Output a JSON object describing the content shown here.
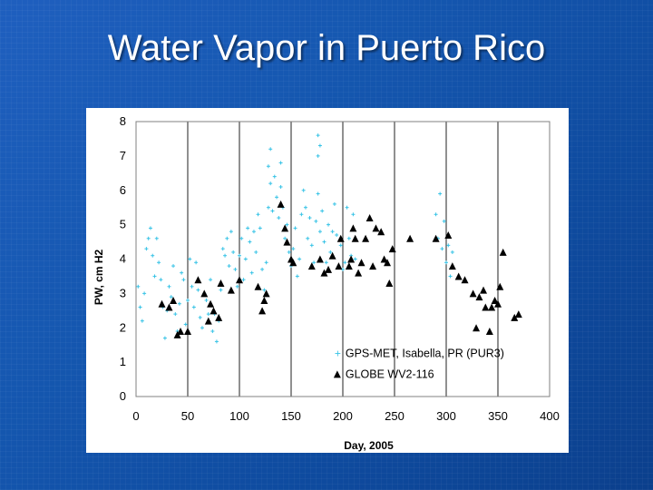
{
  "slide": {
    "title": "Water Vapor in Puerto Rico"
  },
  "colors": {
    "background": "#1557b0",
    "gps_series": "#37c3e6",
    "globe_series": "#000000"
  },
  "chart_data": {
    "type": "scatter",
    "title": "",
    "xlabel": "Day, 2005",
    "ylabel": "PW, cm H2",
    "xlim": [
      0,
      400
    ],
    "ylim": [
      0,
      8
    ],
    "xticks": [
      "0",
      "50",
      "100",
      "150",
      "200",
      "250",
      "300",
      "350",
      "400"
    ],
    "yticks": [
      "0",
      "1",
      "2",
      "3",
      "4",
      "5",
      "6",
      "7",
      "8"
    ],
    "grid": "vertical",
    "legend_position": "bottom-right",
    "series": [
      {
        "name": "GPS-MET, Isabella, PR (PUR3)",
        "marker": "plus",
        "points": [
          [
            2,
            3.2
          ],
          [
            4,
            2.6
          ],
          [
            6,
            2.2
          ],
          [
            8,
            3.0
          ],
          [
            10,
            4.3
          ],
          [
            12,
            4.6
          ],
          [
            14,
            4.9
          ],
          [
            16,
            4.1
          ],
          [
            18,
            3.5
          ],
          [
            20,
            4.6
          ],
          [
            22,
            3.9
          ],
          [
            24,
            3.4
          ],
          [
            26,
            2.6
          ],
          [
            28,
            1.7
          ],
          [
            30,
            2.5
          ],
          [
            32,
            3.2
          ],
          [
            34,
            2.9
          ],
          [
            36,
            3.8
          ],
          [
            38,
            2.4
          ],
          [
            40,
            1.9
          ],
          [
            42,
            2.7
          ],
          [
            44,
            3.6
          ],
          [
            46,
            3.4
          ],
          [
            48,
            2.1
          ],
          [
            50,
            2.8
          ],
          [
            52,
            4.0
          ],
          [
            54,
            3.2
          ],
          [
            56,
            2.6
          ],
          [
            58,
            3.9
          ],
          [
            60,
            3.1
          ],
          [
            62,
            2.3
          ],
          [
            64,
            2.0
          ],
          [
            66,
            3.0
          ],
          [
            68,
            2.8
          ],
          [
            70,
            2.4
          ],
          [
            72,
            3.4
          ],
          [
            74,
            1.9
          ],
          [
            76,
            2.4
          ],
          [
            78,
            1.6
          ],
          [
            80,
            2.2
          ],
          [
            82,
            3.1
          ],
          [
            84,
            4.3
          ],
          [
            86,
            4.1
          ],
          [
            88,
            4.6
          ],
          [
            90,
            3.8
          ],
          [
            92,
            4.8
          ],
          [
            94,
            4.2
          ],
          [
            96,
            3.7
          ],
          [
            98,
            3.2
          ],
          [
            100,
            4.1
          ],
          [
            102,
            4.6
          ],
          [
            104,
            3.4
          ],
          [
            106,
            4.0
          ],
          [
            108,
            4.9
          ],
          [
            110,
            4.5
          ],
          [
            112,
            3.6
          ],
          [
            114,
            4.8
          ],
          [
            116,
            4.2
          ],
          [
            118,
            5.3
          ],
          [
            120,
            4.9
          ],
          [
            122,
            3.7
          ],
          [
            124,
            3.1
          ],
          [
            126,
            3.9
          ],
          [
            128,
            5.5
          ],
          [
            130,
            6.2
          ],
          [
            132,
            5.4
          ],
          [
            134,
            6.4
          ],
          [
            136,
            5.8
          ],
          [
            138,
            5.2
          ],
          [
            140,
            6.1
          ],
          [
            142,
            5.5
          ],
          [
            144,
            4.6
          ],
          [
            146,
            5.0
          ],
          [
            148,
            4.2
          ],
          [
            150,
            3.8
          ],
          [
            152,
            4.3
          ],
          [
            154,
            4.9
          ],
          [
            156,
            3.5
          ],
          [
            158,
            4.0
          ],
          [
            160,
            5.3
          ],
          [
            162,
            6.0
          ],
          [
            164,
            5.5
          ],
          [
            166,
            4.6
          ],
          [
            168,
            5.2
          ],
          [
            170,
            4.4
          ],
          [
            172,
            3.9
          ],
          [
            174,
            5.1
          ],
          [
            176,
            5.9
          ],
          [
            178,
            4.8
          ],
          [
            180,
            5.4
          ],
          [
            182,
            4.5
          ],
          [
            184,
            3.9
          ],
          [
            186,
            5.0
          ],
          [
            188,
            4.2
          ],
          [
            190,
            4.8
          ],
          [
            192,
            5.6
          ],
          [
            194,
            4.7
          ],
          [
            196,
            3.8
          ],
          [
            198,
            4.4
          ],
          [
            200,
            3.7
          ],
          [
            202,
            3.9
          ],
          [
            204,
            5.5
          ],
          [
            206,
            4.6
          ],
          [
            208,
            4.1
          ],
          [
            210,
            5.3
          ],
          [
            212,
            4.0
          ],
          [
            290,
            5.3
          ],
          [
            292,
            4.6
          ],
          [
            294,
            5.9
          ],
          [
            296,
            4.3
          ],
          [
            298,
            5.1
          ],
          [
            300,
            3.9
          ],
          [
            302,
            4.4
          ],
          [
            304,
            3.5
          ],
          [
            306,
            4.2
          ],
          [
            130,
            7.2
          ],
          [
            176,
            7.6
          ],
          [
            178,
            7.3
          ],
          [
            176,
            7.0
          ],
          [
            140,
            6.8
          ],
          [
            128,
            6.7
          ]
        ]
      },
      {
        "name": "GLOBE WV2-116",
        "marker": "triangle",
        "points": [
          [
            25,
            2.7
          ],
          [
            32,
            2.6
          ],
          [
            36,
            2.8
          ],
          [
            40,
            1.8
          ],
          [
            43,
            1.9
          ],
          [
            50,
            1.9
          ],
          [
            60,
            3.4
          ],
          [
            66,
            3.0
          ],
          [
            70,
            2.2
          ],
          [
            72,
            2.7
          ],
          [
            75,
            2.5
          ],
          [
            80,
            2.3
          ],
          [
            82,
            3.3
          ],
          [
            92,
            3.1
          ],
          [
            100,
            3.4
          ],
          [
            118,
            3.2
          ],
          [
            122,
            2.5
          ],
          [
            124,
            2.8
          ],
          [
            126,
            3.0
          ],
          [
            140,
            5.6
          ],
          [
            144,
            4.9
          ],
          [
            146,
            4.5
          ],
          [
            150,
            4.0
          ],
          [
            152,
            3.9
          ],
          [
            170,
            3.8
          ],
          [
            178,
            4.0
          ],
          [
            182,
            3.6
          ],
          [
            186,
            3.7
          ],
          [
            190,
            4.1
          ],
          [
            196,
            3.8
          ],
          [
            198,
            4.6
          ],
          [
            206,
            3.8
          ],
          [
            208,
            4.0
          ],
          [
            210,
            4.9
          ],
          [
            212,
            4.6
          ],
          [
            215,
            3.6
          ],
          [
            218,
            3.9
          ],
          [
            222,
            4.6
          ],
          [
            226,
            5.2
          ],
          [
            229,
            3.8
          ],
          [
            232,
            4.9
          ],
          [
            237,
            4.8
          ],
          [
            240,
            4.0
          ],
          [
            243,
            3.9
          ],
          [
            245,
            3.3
          ],
          [
            248,
            4.3
          ],
          [
            265,
            4.6
          ],
          [
            290,
            4.6
          ],
          [
            302,
            4.7
          ],
          [
            306,
            3.8
          ],
          [
            312,
            3.5
          ],
          [
            318,
            3.4
          ],
          [
            326,
            3.0
          ],
          [
            329,
            2.0
          ],
          [
            332,
            2.9
          ],
          [
            336,
            3.1
          ],
          [
            338,
            2.6
          ],
          [
            342,
            1.9
          ],
          [
            344,
            2.6
          ],
          [
            347,
            2.8
          ],
          [
            350,
            2.7
          ],
          [
            352,
            3.2
          ],
          [
            355,
            4.2
          ],
          [
            366,
            2.3
          ],
          [
            370,
            2.4
          ]
        ]
      }
    ]
  }
}
